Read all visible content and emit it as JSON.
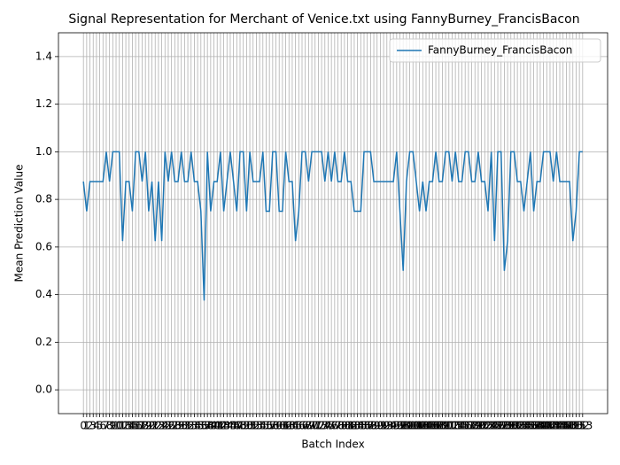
{
  "chart_data": {
    "type": "line",
    "title": "Signal Representation for Merchant of Venice.txt using FannyBurney_FrancisBacon",
    "x_label": "Batch Index",
    "y_label": "Mean Prediction Value",
    "x": [
      0,
      1,
      2,
      3,
      4,
      5,
      6,
      7,
      8,
      9,
      10,
      11,
      12,
      13,
      14,
      15,
      16,
      17,
      18,
      19,
      20,
      21,
      22,
      23,
      24,
      25,
      26,
      27,
      28,
      29,
      30,
      31,
      32,
      33,
      34,
      35,
      36,
      37,
      38,
      39,
      40,
      41,
      42,
      43,
      44,
      45,
      46,
      47,
      48,
      49,
      50,
      51,
      52,
      53,
      54,
      55,
      56,
      57,
      58,
      59,
      60,
      61,
      62,
      63,
      64,
      65,
      66,
      67,
      68,
      69,
      70,
      71,
      72,
      73,
      74,
      75,
      76,
      77,
      78,
      79,
      80,
      81,
      82,
      83,
      84,
      85,
      86,
      87,
      88,
      89,
      90,
      91,
      92,
      93,
      94,
      95,
      96,
      97,
      98,
      99,
      100,
      101,
      102,
      103,
      104,
      105,
      106,
      107,
      108,
      109,
      110,
      111,
      112,
      113,
      114,
      115,
      116,
      117,
      118,
      119,
      120,
      121,
      122,
      123,
      124,
      125,
      126,
      127,
      128,
      129,
      130,
      131,
      132,
      133,
      134,
      135,
      136,
      137,
      138,
      139,
      140,
      141,
      142,
      143,
      144,
      145,
      146,
      147,
      148,
      149,
      150,
      151,
      152,
      153
    ],
    "series": [
      {
        "name": "FannyBurney_FrancisBacon",
        "color": "#1f77b4",
        "values": [
          0.875,
          0.75,
          0.875,
          0.875,
          0.875,
          0.875,
          0.875,
          1.0,
          0.875,
          1.0,
          1.0,
          1.0,
          0.625,
          0.875,
          0.875,
          0.75,
          1.0,
          1.0,
          0.875,
          1.0,
          0.75,
          0.875,
          0.625,
          0.875,
          0.625,
          1.0,
          0.875,
          1.0,
          0.875,
          0.875,
          1.0,
          0.875,
          0.875,
          1.0,
          0.875,
          0.875,
          0.75,
          0.375,
          1.0,
          0.75,
          0.875,
          0.875,
          1.0,
          0.75,
          0.875,
          1.0,
          0.875,
          0.75,
          1.0,
          1.0,
          0.75,
          1.0,
          0.875,
          0.875,
          0.875,
          1.0,
          0.75,
          0.75,
          1.0,
          1.0,
          0.75,
          0.75,
          1.0,
          0.875,
          0.875,
          0.625,
          0.75,
          1.0,
          1.0,
          0.875,
          1.0,
          1.0,
          1.0,
          1.0,
          0.875,
          1.0,
          0.875,
          1.0,
          0.875,
          0.875,
          1.0,
          0.875,
          0.875,
          0.75,
          0.75,
          0.75,
          1.0,
          1.0,
          1.0,
          0.875,
          0.875,
          0.875,
          0.875,
          0.875,
          0.875,
          0.875,
          1.0,
          0.75,
          0.5,
          0.875,
          1.0,
          1.0,
          0.875,
          0.75,
          0.875,
          0.75,
          0.875,
          0.875,
          1.0,
          0.875,
          0.875,
          1.0,
          1.0,
          0.875,
          1.0,
          0.875,
          0.875,
          1.0,
          1.0,
          0.875,
          0.875,
          1.0,
          0.875,
          0.875,
          0.75,
          1.0,
          0.625,
          1.0,
          1.0,
          0.5,
          0.625,
          1.0,
          1.0,
          0.875,
          0.875,
          0.75,
          0.875,
          1.0,
          0.75,
          0.875,
          0.875,
          1.0,
          1.0,
          1.0,
          0.875,
          1.0,
          0.875,
          0.875,
          0.875,
          0.875,
          0.625,
          0.75,
          1.0,
          1.0
        ]
      }
    ],
    "xlim": [
      -7.65,
      160.65
    ],
    "ylim": [
      -0.1,
      1.5
    ],
    "yticks": [
      {
        "value": 0,
        "label": "0.0"
      },
      {
        "value": 0.2,
        "label": "0.2"
      },
      {
        "value": 0.4,
        "label": "0.4"
      },
      {
        "value": 0.6,
        "label": "0.6"
      },
      {
        "value": 0.8,
        "label": "0.8"
      },
      {
        "value": 1.0,
        "label": "1.0"
      },
      {
        "value": 1.2,
        "label": "1.2"
      },
      {
        "value": 1.4,
        "label": "1.4"
      }
    ],
    "grid": true,
    "legend": "upper right"
  }
}
